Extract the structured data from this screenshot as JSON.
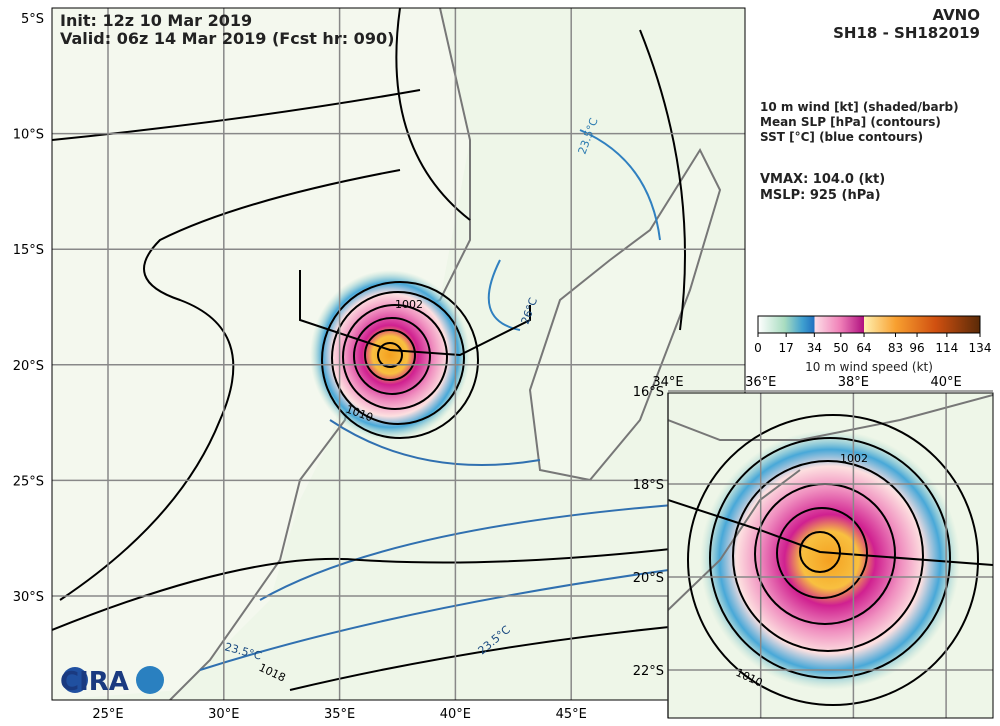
{
  "header": {
    "init": "Init:   12z 10 Mar 2019",
    "valid": "Valid: 06z 14 Mar 2019 (Fcst hr: 090)",
    "model": "AVNO",
    "storm": "SH18 - SH182019"
  },
  "legend": [
    "10 m wind [kt] (shaded/barb)",
    "Mean SLP [hPa] (contours)",
    "SST [°C] (blue contours)"
  ],
  "stats": [
    "VMAX: 104.0 (kt)",
    "MSLP:  925 (hPa)"
  ],
  "colorbar": {
    "ticks": [
      0,
      17,
      34,
      50,
      64,
      83,
      96,
      114,
      134
    ],
    "label": "10 m wind speed (kt)"
  },
  "map": {
    "lat_labels": [
      "5°S",
      "10°S",
      "15°S",
      "20°S",
      "25°S",
      "30°S"
    ],
    "lon_labels": [
      "25°E",
      "30°E",
      "35°E",
      "40°E",
      "45°E"
    ],
    "contour_labels": [
      "1002",
      "1010",
      "1018",
      "23.5°C",
      "23.5°C",
      "26°C",
      "23.5°C"
    ]
  },
  "inset": {
    "lat_labels": [
      "16°S",
      "18°S",
      "20°S",
      "22°S"
    ],
    "lon_labels": [
      "34°E",
      "36°E",
      "38°E",
      "40°E"
    ],
    "contour_labels": [
      "1002",
      "1010"
    ]
  },
  "logo": "CIRA"
}
